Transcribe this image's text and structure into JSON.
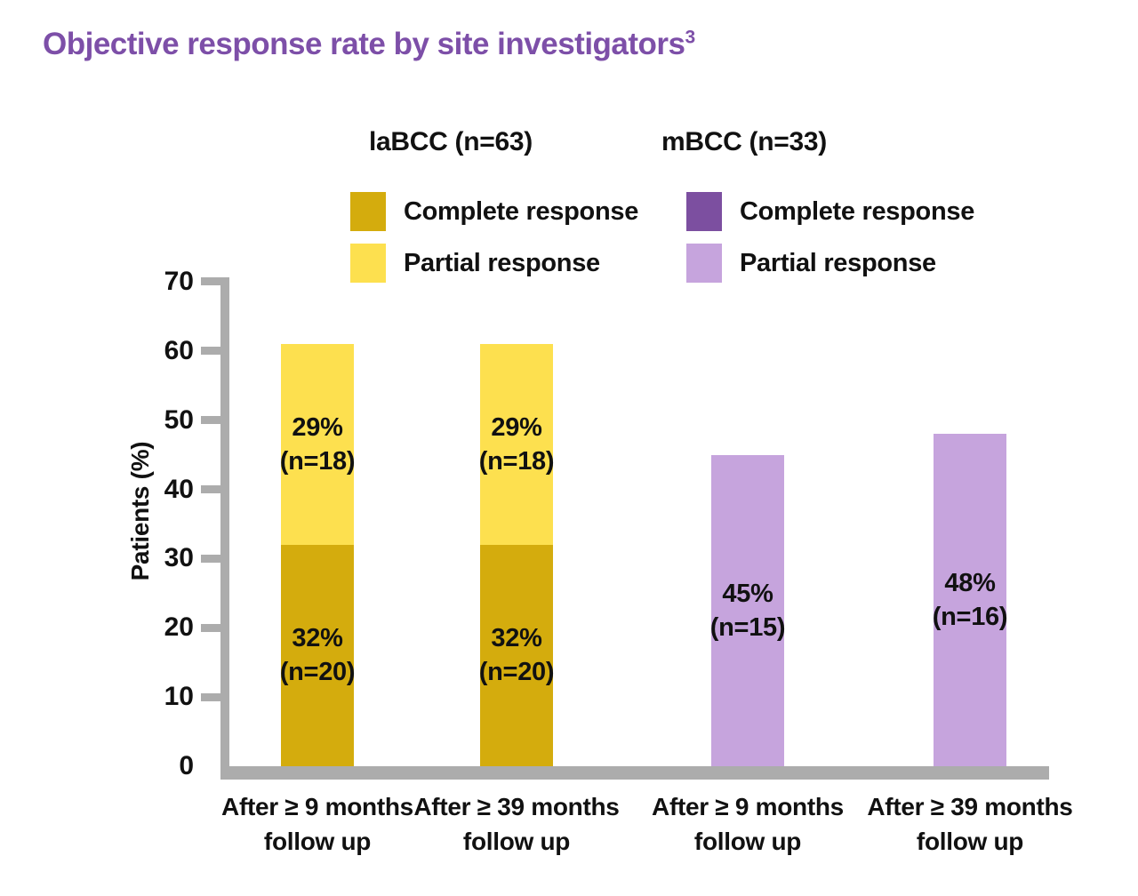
{
  "header": {
    "title": "Objective response rate by site investigators",
    "title_superscript": "3",
    "title_color": "#7D4FA8"
  },
  "chart_data": {
    "type": "bar",
    "stacked": true,
    "title": "Objective response rate by site investigators³",
    "ylabel": "Patients (%)",
    "ylim": [
      0,
      70
    ],
    "yticks": [
      0,
      10,
      20,
      30,
      40,
      50,
      60,
      70
    ],
    "grid": false,
    "legend_position": "top",
    "axis_color": "#ACACAC",
    "text_color": "#111111",
    "groups": [
      {
        "name": "laBCC (n=63)",
        "legend": [
          {
            "label": "Complete response",
            "color": "#D4AC0D"
          },
          {
            "label": "Partial response",
            "color": "#FDE04F"
          }
        ]
      },
      {
        "name": "mBCC (n=33)",
        "legend": [
          {
            "label": "Complete response",
            "color": "#7C4FA0"
          },
          {
            "label": "Partial response",
            "color": "#C6A4DD"
          }
        ]
      }
    ],
    "categories": [
      "After ≥ 9 months follow up",
      "After ≥ 39 months follow up",
      "After ≥ 9 months follow up",
      "After ≥ 39 months follow up"
    ],
    "bars": [
      {
        "group": "laBCC (n=63)",
        "category_line1": "After ≥ 9 months",
        "category_line2": "follow up",
        "segments": [
          {
            "name": "Complete response",
            "value": 32,
            "pct_label": "32%",
            "n_label": "(n=20)",
            "color": "#D4AC0D"
          },
          {
            "name": "Partial response",
            "value": 29,
            "pct_label": "29%",
            "n_label": "(n=18)",
            "color": "#FDE04F"
          }
        ]
      },
      {
        "group": "laBCC (n=63)",
        "category_line1": "After ≥ 39 months",
        "category_line2": "follow up",
        "segments": [
          {
            "name": "Complete response",
            "value": 32,
            "pct_label": "32%",
            "n_label": "(n=20)",
            "color": "#D4AC0D"
          },
          {
            "name": "Partial response",
            "value": 29,
            "pct_label": "29%",
            "n_label": "(n=18)",
            "color": "#FDE04F"
          }
        ]
      },
      {
        "group": "mBCC (n=33)",
        "category_line1": "After ≥ 9 months",
        "category_line2": "follow up",
        "segments": [
          {
            "name": "Partial response",
            "value": 45,
            "pct_label": "45%",
            "n_label": "(n=15)",
            "color": "#C6A4DD"
          }
        ]
      },
      {
        "group": "mBCC (n=33)",
        "category_line1": "After ≥ 39 months",
        "category_line2": "follow up",
        "segments": [
          {
            "name": "Partial response",
            "value": 48,
            "pct_label": "48%",
            "n_label": "(n=16)",
            "color": "#C6A4DD"
          }
        ]
      }
    ]
  }
}
